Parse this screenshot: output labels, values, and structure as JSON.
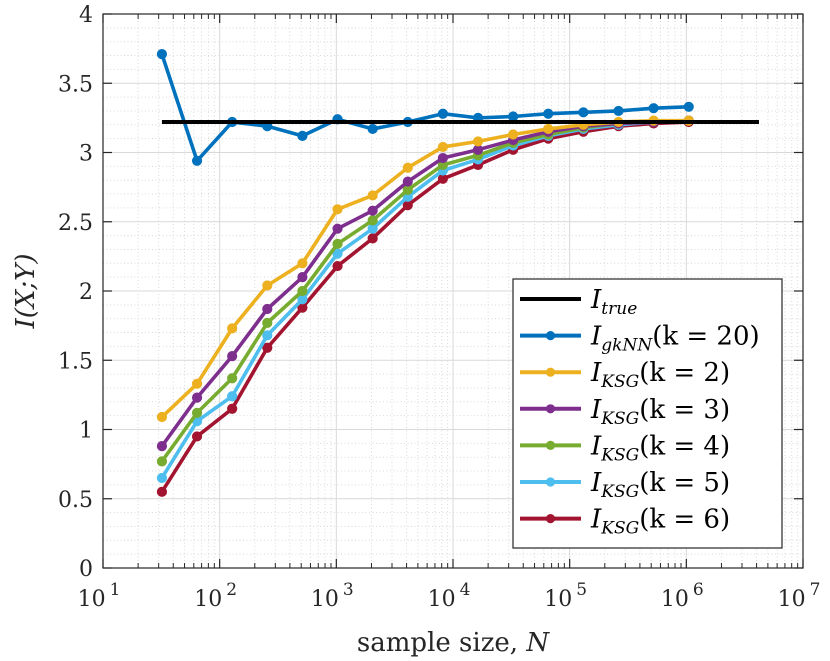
{
  "chart_data": {
    "type": "line",
    "title": "",
    "xlabel": "sample size, N",
    "ylabel": "I(X;Y)",
    "xscale": "log",
    "xlim": [
      10,
      10000000
    ],
    "ylim": [
      0,
      4
    ],
    "grid": true,
    "minor_grid": true,
    "legend_position": "bottom-right",
    "x_ticks": [
      {
        "value": 10,
        "base": "10",
        "exp": "1"
      },
      {
        "value": 100,
        "base": "10",
        "exp": "2"
      },
      {
        "value": 1000,
        "base": "10",
        "exp": "3"
      },
      {
        "value": 10000,
        "base": "10",
        "exp": "4"
      },
      {
        "value": 100000,
        "base": "10",
        "exp": "5"
      },
      {
        "value": 1000000,
        "base": "10",
        "exp": "6"
      },
      {
        "value": 10000000,
        "base": "10",
        "exp": "7"
      }
    ],
    "y_ticks": [
      {
        "value": 0,
        "label": "0"
      },
      {
        "value": 0.5,
        "label": "0.5"
      },
      {
        "value": 1,
        "label": "1"
      },
      {
        "value": 1.5,
        "label": "1.5"
      },
      {
        "value": 2,
        "label": "2"
      },
      {
        "value": 2.5,
        "label": "2.5"
      },
      {
        "value": 3,
        "label": "3"
      },
      {
        "value": 3.5,
        "label": "3.5"
      },
      {
        "value": 4,
        "label": "4"
      }
    ],
    "x": [
      32,
      64,
      128,
      256,
      512,
      1024,
      2048,
      4096,
      8192,
      16384,
      32768,
      65536,
      131072,
      262144,
      524288,
      1048576
    ],
    "series": [
      {
        "id": "itrue",
        "name": "I_true",
        "legend_main": "I",
        "legend_sub": "true",
        "legend_rest": "",
        "color": "#000000",
        "markers": false,
        "x": [
          32,
          4194304
        ],
        "values": [
          3.22,
          3.22
        ]
      },
      {
        "id": "gknn20",
        "name": "I_gkNN(k = 20)",
        "legend_main": "I",
        "legend_sub": "gkNN",
        "legend_rest": "(k = 20)",
        "color": "#0072BD",
        "markers": true,
        "values": [
          3.71,
          2.94,
          3.22,
          3.19,
          3.12,
          3.24,
          3.17,
          3.22,
          3.28,
          3.25,
          3.26,
          3.28,
          3.29,
          3.3,
          3.32,
          3.33
        ]
      },
      {
        "id": "ksg2",
        "name": "I_KSG(k = 2)",
        "legend_main": "I",
        "legend_sub": "KSG",
        "legend_rest": "(k = 2)",
        "color": "#EDB120",
        "markers": true,
        "values": [
          1.09,
          1.33,
          1.73,
          2.04,
          2.2,
          2.59,
          2.69,
          2.89,
          3.04,
          3.08,
          3.13,
          3.17,
          3.2,
          3.22,
          3.23,
          3.23
        ]
      },
      {
        "id": "ksg3",
        "name": "I_KSG(k = 3)",
        "legend_main": "I",
        "legend_sub": "KSG",
        "legend_rest": "(k = 3)",
        "color": "#7E2F8E",
        "markers": true,
        "values": [
          0.88,
          1.23,
          1.53,
          1.87,
          2.1,
          2.45,
          2.58,
          2.79,
          2.96,
          3.02,
          3.09,
          3.15,
          3.19,
          3.21,
          3.22,
          3.23
        ]
      },
      {
        "id": "ksg4",
        "name": "I_KSG(k = 4)",
        "legend_main": "I",
        "legend_sub": "KSG",
        "legend_rest": "(k = 4)",
        "color": "#77AC30",
        "markers": true,
        "values": [
          0.77,
          1.12,
          1.37,
          1.77,
          2.0,
          2.34,
          2.51,
          2.73,
          2.91,
          2.98,
          3.07,
          3.13,
          3.18,
          3.21,
          3.22,
          3.23
        ]
      },
      {
        "id": "ksg5",
        "name": "I_KSG(k = 5)",
        "legend_main": "I",
        "legend_sub": "KSG",
        "legend_rest": "(k = 5)",
        "color": "#4DBEEE",
        "markers": true,
        "values": [
          0.65,
          1.06,
          1.24,
          1.68,
          1.94,
          2.27,
          2.45,
          2.68,
          2.87,
          2.95,
          3.05,
          3.12,
          3.17,
          3.2,
          3.22,
          3.23
        ]
      },
      {
        "id": "ksg6",
        "name": "I_KSG(k = 6)",
        "legend_main": "I",
        "legend_sub": "KSG",
        "legend_rest": "(k = 6)",
        "color": "#A2142F",
        "markers": true,
        "values": [
          0.55,
          0.95,
          1.15,
          1.59,
          1.88,
          2.18,
          2.38,
          2.62,
          2.81,
          2.91,
          3.02,
          3.1,
          3.15,
          3.19,
          3.21,
          3.22
        ]
      }
    ]
  }
}
